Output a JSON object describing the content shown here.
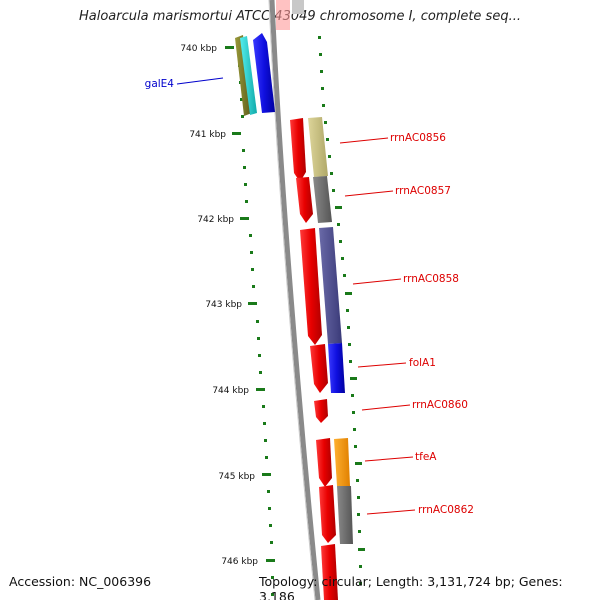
{
  "title": "Haloarcula marismortui ATCC 43049 chromosome I, complete seq...",
  "footer": {
    "accession": "Accession: NC_006396",
    "topology": "Topology: circular; Length: 3,131,724 bp; Genes: 3,186"
  },
  "ruler": [
    "740 kbp",
    "741 kbp",
    "742 kbp",
    "743 kbp",
    "744 kbp",
    "745 kbp",
    "746 kbp"
  ],
  "genes": [
    {
      "name": "galE4",
      "color": "#0000cc"
    },
    {
      "name": "rrnAC0856",
      "color": "#dd0000"
    },
    {
      "name": "rrnAC0857",
      "color": "#dd0000"
    },
    {
      "name": "rrnAC0858",
      "color": "#dd0000"
    },
    {
      "name": "folA1",
      "color": "#dd0000"
    },
    {
      "name": "rrnAC0860",
      "color": "#dd0000"
    },
    {
      "name": "tfeA",
      "color": "#dd0000"
    },
    {
      "name": "rrnAC0862",
      "color": "#dd0000"
    }
  ],
  "colors": {
    "backbone": "#8a8a8a",
    "ruler": "#1a7a1a",
    "cds_forward": "#1a10e0",
    "cds_reverse": "#ee0000",
    "olive": "#7a7a2a",
    "cyan": "#22cccc",
    "khaki": "#c8c080",
    "grey": "#6e6e6e",
    "slate": "#4a4a8a",
    "orange": "#ff9900"
  }
}
